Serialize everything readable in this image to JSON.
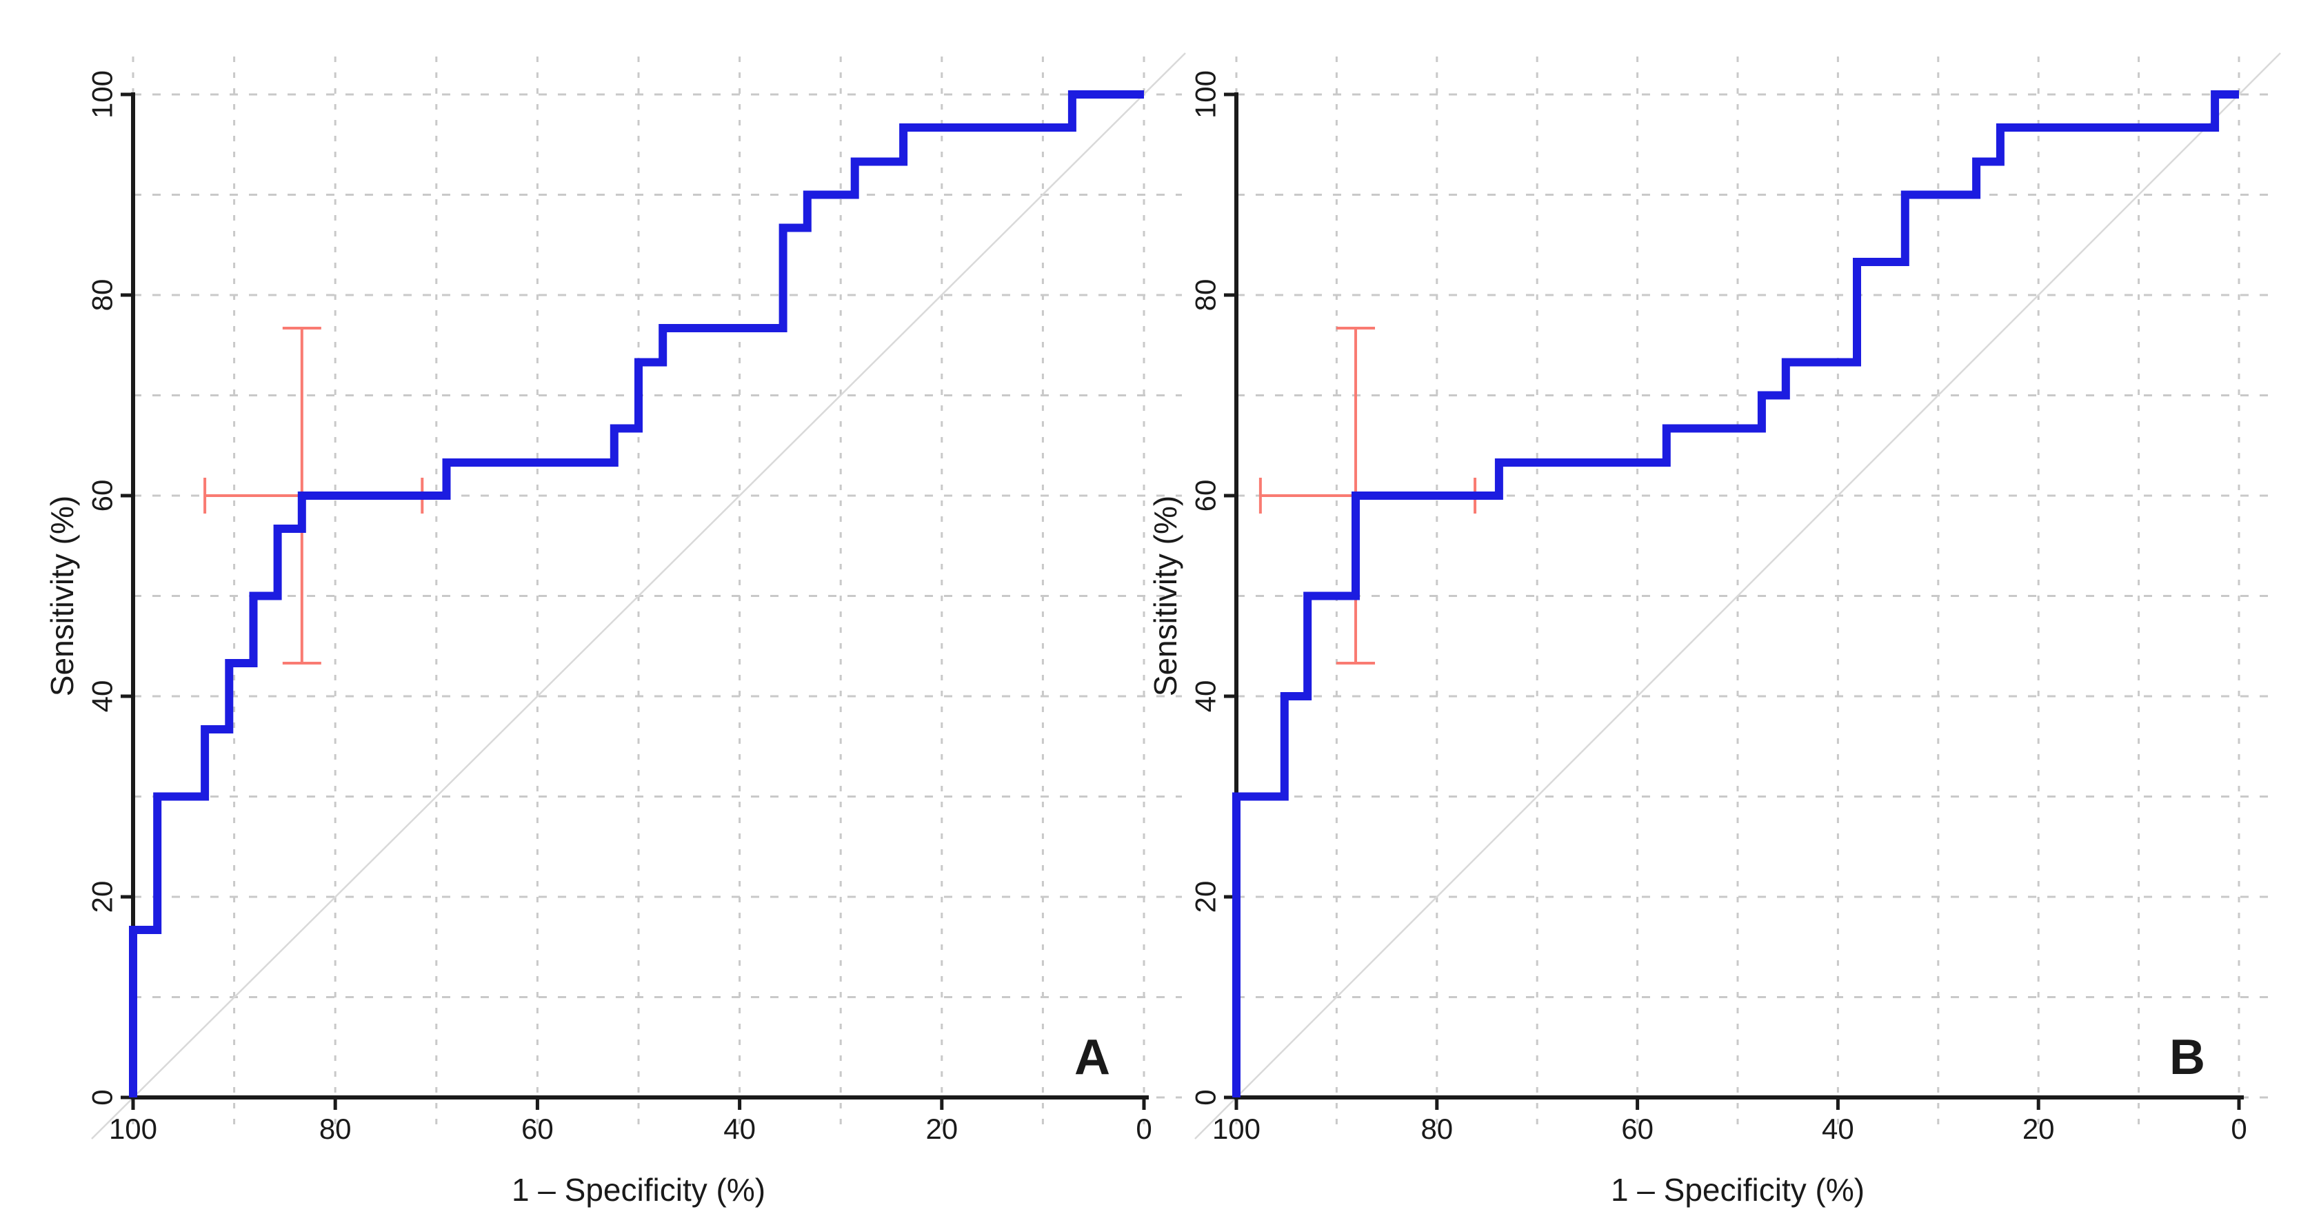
{
  "figure": {
    "description": "Two-panel ROC curve figure",
    "background": "#ffffff",
    "style": {
      "curve_color": "#1c1ce0",
      "error_bar_color": "#f97b72",
      "gridline_color": "#c9c9c9",
      "diagonal_color": "#d9d9d9",
      "axis_color": "#1a1a1a",
      "text_color": "#1a1a1a"
    }
  },
  "chart_data": [
    {
      "type": "line",
      "subtype": "roc-step-curve",
      "panel_label": "A",
      "xlabel": "1 – Specificity (%)",
      "ylabel": "Sensitivity (%)",
      "x_ticks": [
        100,
        80,
        60,
        40,
        20,
        0
      ],
      "y_ticks": [
        0,
        20,
        40,
        60,
        80,
        100
      ],
      "xlim": [
        100,
        0
      ],
      "ylim": [
        0,
        100
      ],
      "x_axis_direction": "reversed (100 at left, 0 at right)",
      "grid": "dashed gray gridlines every 10 units, both axes",
      "legend": "none",
      "series": [
        {
          "name": "ROC step curve",
          "color": "#1c1ce0",
          "points": [
            [
              100,
              0
            ],
            [
              100,
              16.7
            ],
            [
              97.6,
              16.7
            ],
            [
              97.6,
              30
            ],
            [
              92.9,
              30
            ],
            [
              92.9,
              36.7
            ],
            [
              90.5,
              36.7
            ],
            [
              90.5,
              43.3
            ],
            [
              88.1,
              43.3
            ],
            [
              88.1,
              50
            ],
            [
              85.7,
              50
            ],
            [
              85.7,
              56.7
            ],
            [
              83.3,
              56.7
            ],
            [
              83.3,
              60
            ],
            [
              69,
              60
            ],
            [
              69,
              63.3
            ],
            [
              52.4,
              63.3
            ],
            [
              52.4,
              66.7
            ],
            [
              50,
              66.7
            ],
            [
              50,
              73.3
            ],
            [
              47.6,
              73.3
            ],
            [
              47.6,
              76.7
            ],
            [
              35.7,
              76.7
            ],
            [
              35.7,
              86.7
            ],
            [
              33.3,
              86.7
            ],
            [
              33.3,
              90
            ],
            [
              28.6,
              90
            ],
            [
              28.6,
              93.3
            ],
            [
              23.8,
              93.3
            ],
            [
              23.8,
              96.7
            ],
            [
              7.1,
              96.7
            ],
            [
              7.1,
              100
            ],
            [
              0,
              100
            ]
          ]
        },
        {
          "name": "operating point with 95% CI",
          "color": "#f97b72",
          "center": [
            83.3,
            60
          ],
          "sensitivity_ci": [
            43.3,
            76.7
          ],
          "specificity_ci": [
            71.4,
            92.9
          ]
        },
        {
          "name": "chance diagonal",
          "color": "#d9d9d9",
          "points": [
            [
              100,
              0
            ],
            [
              0,
              100
            ]
          ]
        }
      ]
    },
    {
      "type": "line",
      "subtype": "roc-step-curve",
      "panel_label": "B",
      "xlabel": "1 – Specificity (%)",
      "ylabel": "Sensitivity (%)",
      "x_ticks": [
        100,
        80,
        60,
        40,
        20,
        0
      ],
      "y_ticks": [
        0,
        20,
        40,
        60,
        80,
        100
      ],
      "xlim": [
        100,
        0
      ],
      "ylim": [
        0,
        100
      ],
      "x_axis_direction": "reversed (100 at left, 0 at right)",
      "grid": "dashed gray gridlines every 10 units, both axes",
      "legend": "none",
      "series": [
        {
          "name": "ROC step curve",
          "color": "#1c1ce0",
          "points": [
            [
              100,
              0
            ],
            [
              100,
              30
            ],
            [
              95.2,
              30
            ],
            [
              95.2,
              40
            ],
            [
              92.9,
              40
            ],
            [
              92.9,
              50
            ],
            [
              88.1,
              50
            ],
            [
              88.1,
              60
            ],
            [
              73.8,
              60
            ],
            [
              73.8,
              63.3
            ],
            [
              57.1,
              63.3
            ],
            [
              57.1,
              66.7
            ],
            [
              47.6,
              66.7
            ],
            [
              47.6,
              70
            ],
            [
              45.2,
              70
            ],
            [
              45.2,
              73.3
            ],
            [
              38.1,
              73.3
            ],
            [
              38.1,
              83.3
            ],
            [
              33.3,
              83.3
            ],
            [
              33.3,
              90
            ],
            [
              26.2,
              90
            ],
            [
              26.2,
              93.3
            ],
            [
              23.8,
              93.3
            ],
            [
              23.8,
              96.7
            ],
            [
              2.4,
              96.7
            ],
            [
              2.4,
              100
            ],
            [
              0,
              100
            ]
          ]
        },
        {
          "name": "operating point with 95% CI",
          "color": "#f97b72",
          "center": [
            88.1,
            60
          ],
          "sensitivity_ci": [
            43.3,
            76.7
          ],
          "specificity_ci": [
            76.2,
            97.6
          ]
        },
        {
          "name": "chance diagonal",
          "color": "#d9d9d9",
          "points": [
            [
              100,
              0
            ],
            [
              0,
              100
            ]
          ]
        }
      ]
    }
  ]
}
